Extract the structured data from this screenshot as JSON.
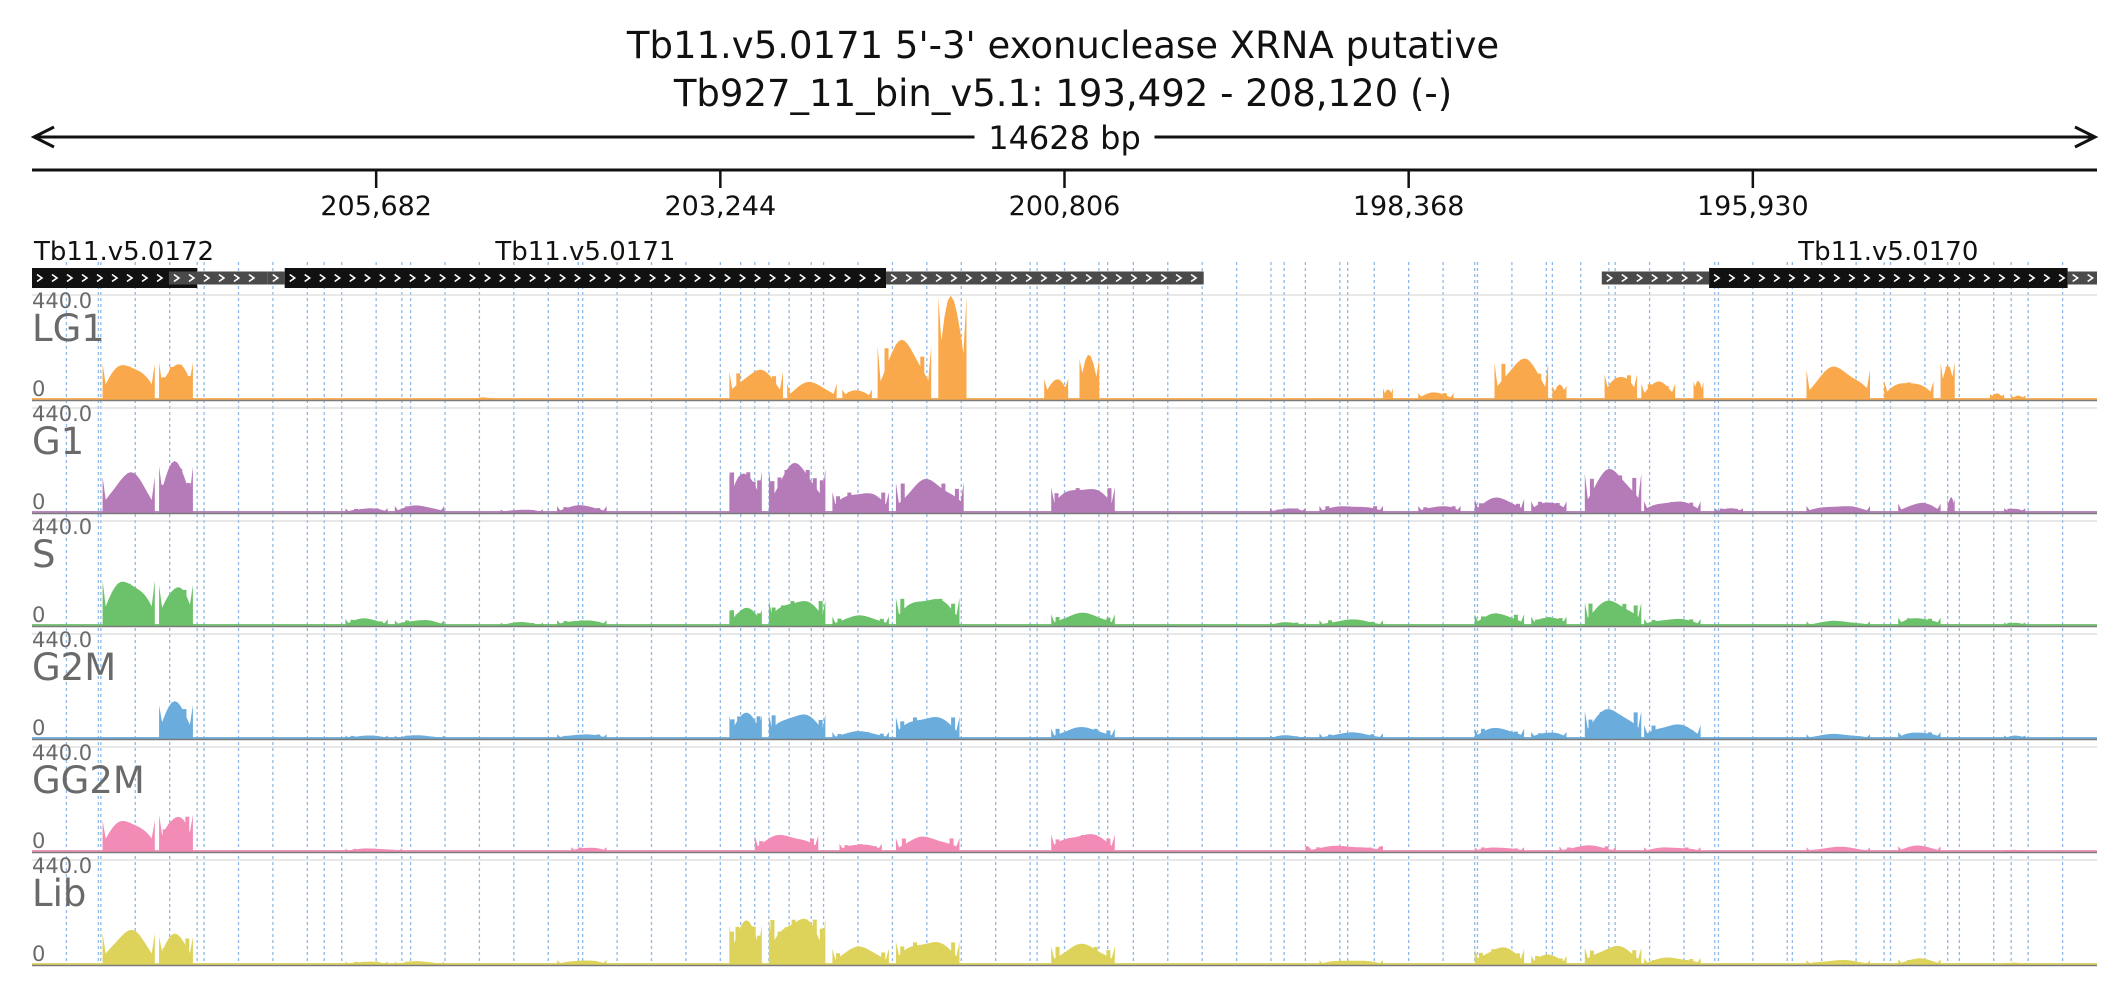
{
  "chart_data": {
    "type": "area",
    "title": "Tb11.v5.0171  5'-3' exonuclease XRNA  putative",
    "subtitle": "Tb927_11_bin_v5.1: 193,492 - 208,120 (-)",
    "span_label": "14628 bp",
    "region": {
      "start": 193492,
      "end": 208120,
      "strand": "-"
    },
    "xlim": [
      208120,
      193492
    ],
    "x_ticks": [
      {
        "value": 205682,
        "label": "205,682"
      },
      {
        "value": 203244,
        "label": "203,244"
      },
      {
        "value": 200806,
        "label": "200,806"
      },
      {
        "value": 198368,
        "label": "198,368"
      },
      {
        "value": 195930,
        "label": "195,930"
      }
    ],
    "genes": [
      {
        "name": "Tb11.v5.0172",
        "cds": [
          208120,
          206950
        ],
        "utr": [],
        "show_label": true
      },
      {
        "name": "Tb11.v5.0171",
        "cds": [
          206330,
          202070
        ],
        "utr": [
          [
            206330,
            206450
          ],
          [
            202070,
            199820
          ]
        ],
        "show_label": true
      },
      {
        "name": "Tb11.v5.0170",
        "cds": [
          196240,
          193700
        ],
        "utr": [
          [
            196240,
            197000
          ],
          [
            193700,
            193492
          ]
        ],
        "show_label": true
      },
      {
        "name": "",
        "cds": null,
        "utr": [
          [
            206450,
            207150
          ]
        ],
        "show_label": false
      }
    ],
    "ylim": [
      0,
      440
    ],
    "ymax_label": "440.0",
    "ymin_label": "0",
    "bins": [
      [
        207650,
        206950
      ],
      [
        206050,
        205500
      ],
      [
        204250,
        203100
      ],
      [
        202900,
        202600
      ],
      [
        201000,
        200500
      ],
      [
        199250,
        198800
      ],
      [
        197900,
        197350
      ],
      [
        196950,
        196200
      ],
      [
        195650,
        195000
      ],
      [
        194550,
        194100
      ]
    ],
    "series": [
      {
        "name": "LG1",
        "color": "#f9a94b",
        "segments": [
          [
            207620,
            207250,
            155,
            1
          ],
          [
            207220,
            206980,
            160,
            4
          ],
          [
            205000,
            204850,
            10,
            0
          ],
          [
            203180,
            202800,
            120,
            3
          ],
          [
            202770,
            202420,
            70,
            1
          ],
          [
            202380,
            202170,
            45,
            1
          ],
          [
            202130,
            201750,
            230,
            3
          ],
          [
            201700,
            201500,
            440,
            1
          ],
          [
            200950,
            200780,
            90,
            1
          ],
          [
            200700,
            200560,
            175,
            1
          ],
          [
            198550,
            198480,
            50,
            1
          ],
          [
            198300,
            198050,
            30,
            2
          ],
          [
            197760,
            197380,
            160,
            3
          ],
          [
            197350,
            197250,
            60,
            1
          ],
          [
            196980,
            196750,
            110,
            2
          ],
          [
            196720,
            196480,
            70,
            2
          ],
          [
            196350,
            196280,
            80,
            1
          ],
          [
            195550,
            195100,
            130,
            1
          ],
          [
            195000,
            194650,
            80,
            1
          ],
          [
            194600,
            194500,
            160,
            1
          ],
          [
            194250,
            194150,
            25,
            1
          ],
          [
            194100,
            194000,
            20,
            1
          ]
        ]
      },
      {
        "name": "G1",
        "color": "#b57ab8",
        "segments": [
          [
            207620,
            207250,
            155,
            1
          ],
          [
            207220,
            206980,
            200,
            4
          ],
          [
            205900,
            205600,
            20,
            2
          ],
          [
            205550,
            205200,
            30,
            2
          ],
          [
            204800,
            204500,
            15,
            2
          ],
          [
            204400,
            204050,
            30,
            3
          ],
          [
            203180,
            202950,
            180,
            6
          ],
          [
            202900,
            202500,
            190,
            8
          ],
          [
            202450,
            202050,
            90,
            5
          ],
          [
            202000,
            201520,
            130,
            5
          ],
          [
            200900,
            200450,
            110,
            6
          ],
          [
            199350,
            199100,
            20,
            2
          ],
          [
            199000,
            198550,
            30,
            4
          ],
          [
            198300,
            198000,
            30,
            3
          ],
          [
            197900,
            197550,
            60,
            4
          ],
          [
            197500,
            197250,
            50,
            2
          ],
          [
            197120,
            196720,
            170,
            4
          ],
          [
            196700,
            196300,
            50,
            3
          ],
          [
            196200,
            196000,
            20,
            2
          ],
          [
            195550,
            195100,
            30,
            1
          ],
          [
            194900,
            194600,
            40,
            1
          ],
          [
            194550,
            194500,
            60,
            1
          ],
          [
            194150,
            194000,
            20,
            2
          ]
        ]
      },
      {
        "name": "S",
        "color": "#6cc26a",
        "segments": [
          [
            207620,
            207250,
            195,
            1
          ],
          [
            207220,
            206980,
            175,
            2
          ],
          [
            205900,
            205600,
            30,
            3
          ],
          [
            205550,
            205200,
            25,
            2
          ],
          [
            204800,
            204500,
            15,
            2
          ],
          [
            204400,
            204050,
            25,
            3
          ],
          [
            203180,
            202950,
            70,
            6
          ],
          [
            202900,
            202500,
            110,
            6
          ],
          [
            202450,
            202050,
            40,
            4
          ],
          [
            202000,
            201550,
            120,
            5
          ],
          [
            200900,
            200450,
            50,
            5
          ],
          [
            199350,
            199100,
            15,
            2
          ],
          [
            199000,
            198550,
            25,
            3
          ],
          [
            197900,
            197550,
            50,
            3
          ],
          [
            197500,
            197250,
            40,
            3
          ],
          [
            197120,
            196720,
            100,
            5
          ],
          [
            196700,
            196300,
            30,
            3
          ],
          [
            195550,
            195100,
            20,
            1
          ],
          [
            194900,
            194600,
            35,
            2
          ],
          [
            194150,
            194000,
            15,
            2
          ]
        ]
      },
      {
        "name": "G2M",
        "color": "#6aacdc",
        "segments": [
          [
            207620,
            207250,
            5,
            1
          ],
          [
            207220,
            206980,
            145,
            2
          ],
          [
            205900,
            205600,
            15,
            3
          ],
          [
            205550,
            205200,
            15,
            2
          ],
          [
            204400,
            204050,
            20,
            3
          ],
          [
            203180,
            202950,
            100,
            5
          ],
          [
            202900,
            202500,
            105,
            6
          ],
          [
            202450,
            202050,
            30,
            4
          ],
          [
            202000,
            201550,
            95,
            5
          ],
          [
            200900,
            200450,
            45,
            5
          ],
          [
            199350,
            199100,
            15,
            2
          ],
          [
            199000,
            198550,
            25,
            3
          ],
          [
            197900,
            197550,
            45,
            3
          ],
          [
            197500,
            197250,
            30,
            2
          ],
          [
            197120,
            196720,
            120,
            5
          ],
          [
            196700,
            196300,
            60,
            3
          ],
          [
            195550,
            195100,
            20,
            1
          ],
          [
            194900,
            194600,
            30,
            2
          ],
          [
            194150,
            194000,
            15,
            1
          ]
        ]
      },
      {
        "name": "GG2M",
        "color": "#f28bb5",
        "segments": [
          [
            207620,
            207250,
            135,
            1
          ],
          [
            207220,
            206980,
            160,
            3
          ],
          [
            205900,
            205500,
            15,
            3
          ],
          [
            204300,
            204050,
            20,
            2
          ],
          [
            203000,
            202550,
            70,
            5
          ],
          [
            202400,
            202100,
            35,
            3
          ],
          [
            202000,
            201550,
            60,
            4
          ],
          [
            200900,
            200450,
            75,
            5
          ],
          [
            199100,
            198550,
            25,
            3
          ],
          [
            197900,
            197550,
            20,
            3
          ],
          [
            197300,
            196900,
            25,
            3
          ],
          [
            196700,
            196300,
            20,
            2
          ],
          [
            195550,
            195100,
            20,
            1
          ],
          [
            194900,
            194600,
            25,
            1
          ],
          [
            194150,
            194000,
            10,
            1
          ]
        ]
      },
      {
        "name": "Lib",
        "color": "#ddd35a",
        "segments": [
          [
            207620,
            207250,
            135,
            1
          ],
          [
            207220,
            206980,
            120,
            3
          ],
          [
            205900,
            205600,
            15,
            2
          ],
          [
            205550,
            205200,
            15,
            2
          ],
          [
            204400,
            204050,
            20,
            2
          ],
          [
            203180,
            202950,
            170,
            6
          ],
          [
            202900,
            202500,
            200,
            8
          ],
          [
            202450,
            202050,
            70,
            5
          ],
          [
            202000,
            201550,
            100,
            5
          ],
          [
            200900,
            200450,
            80,
            5
          ],
          [
            199000,
            198550,
            20,
            2
          ],
          [
            197900,
            197550,
            70,
            4
          ],
          [
            197500,
            197250,
            40,
            3
          ],
          [
            197120,
            196720,
            75,
            4
          ],
          [
            196700,
            196300,
            30,
            3
          ],
          [
            195550,
            195100,
            20,
            1
          ],
          [
            194900,
            194600,
            25,
            2
          ],
          [
            194150,
            194000,
            10,
            1
          ]
        ]
      }
    ]
  }
}
